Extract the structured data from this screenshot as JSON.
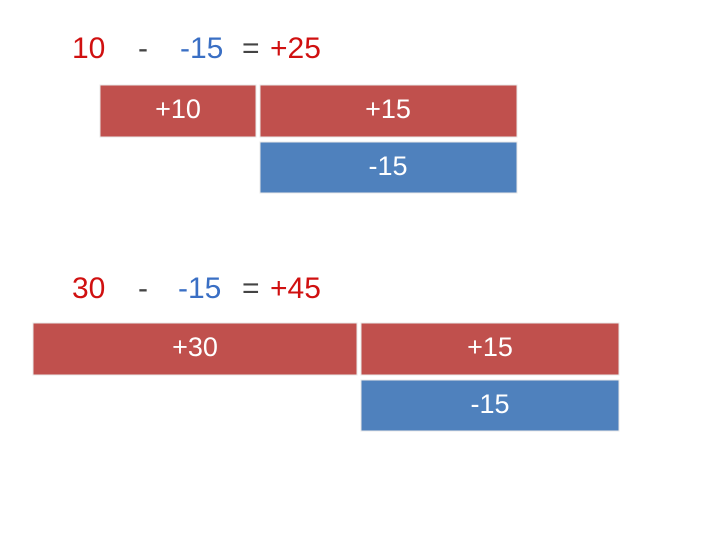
{
  "examples": [
    {
      "equation": [
        "10",
        "-",
        "-15",
        "=",
        "+25"
      ],
      "blocks": [
        "+10",
        "+15",
        "-15"
      ]
    },
    {
      "equation": [
        "30",
        "-",
        "-15",
        "=",
        "+45"
      ],
      "blocks": [
        "+30",
        "+15",
        "-15"
      ]
    }
  ]
}
